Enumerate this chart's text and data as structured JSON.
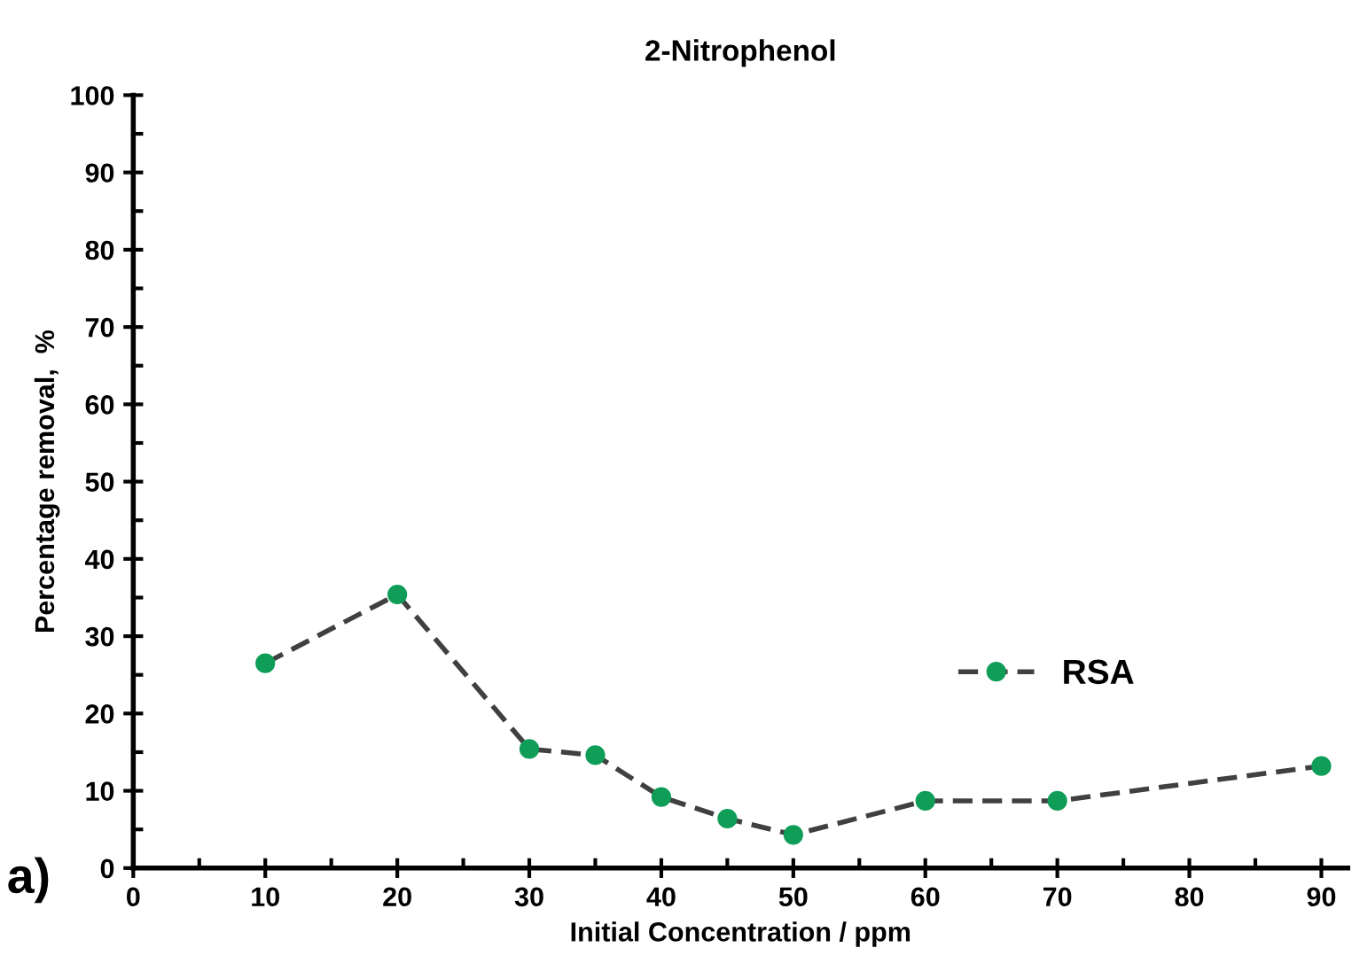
{
  "chart_data": {
    "type": "line",
    "title": "2-Nitrophenol",
    "xlabel": "Initial Concentration / ppm",
    "ylabel": "Percentage removal,  %",
    "x": [
      10,
      20,
      30,
      35,
      40,
      45,
      50,
      60,
      70,
      90
    ],
    "series": [
      {
        "name": "RSA",
        "color": "#0f9d58",
        "values": [
          26.5,
          35.4,
          15.4,
          14.6,
          9.2,
          6.4,
          4.3,
          8.7,
          8.7,
          13.2
        ]
      }
    ],
    "marker": "circle",
    "line_style": "dashed",
    "legend": "right",
    "grid": false,
    "xlim": [
      0,
      92
    ],
    "xticks": [
      0,
      {
        "value": 5,
        "label": null
      },
      10,
      {
        "value": 15,
        "label": null
      },
      20,
      {
        "value": 25,
        "label": null
      },
      30,
      {
        "value": 35,
        "label": null
      },
      40,
      {
        "value": 45,
        "label": null
      },
      50,
      {
        "value": 55,
        "label": null
      },
      60,
      {
        "value": 65,
        "label": null
      },
      70,
      {
        "value": 75,
        "label": null
      },
      80,
      {
        "value": 85,
        "label": null
      },
      90
    ],
    "ylim": [
      0,
      100
    ],
    "yticks": [
      0,
      {
        "value": 5,
        "label": null
      },
      10,
      {
        "value": 15,
        "label": null
      },
      20,
      {
        "value": 25,
        "label": null
      },
      30,
      {
        "value": 35,
        "label": null
      },
      40,
      {
        "value": 45,
        "label": null
      },
      50,
      {
        "value": 55,
        "label": null
      },
      60,
      {
        "value": 65,
        "label": null
      },
      70,
      {
        "value": 75,
        "label": null
      },
      80,
      {
        "value": 85,
        "label": null
      },
      90,
      {
        "value": 95,
        "label": null
      },
      100
    ],
    "annotations": [
      "a)"
    ]
  }
}
